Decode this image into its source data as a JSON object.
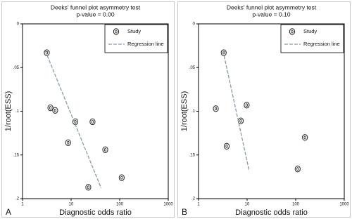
{
  "chart_data": [
    {
      "type": "scatter",
      "title": "Deeks' funnel plot asymmetry test",
      "subtitle": "p-value = 0.00",
      "x_label": "Diagnostic odds ratio",
      "y_label": "1/root(ESS)",
      "panel_label": "A",
      "log_x": true,
      "y_inverted": true,
      "xlim": [
        1,
        1000
      ],
      "xticks": [
        1,
        10,
        100,
        1000
      ],
      "ylim": [
        0,
        0.2
      ],
      "yticks": [
        0,
        {
          "value": 0.05,
          "label": ".05"
        },
        {
          "value": 0.1,
          "label": ".1"
        },
        {
          "value": 0.15,
          "label": ".15"
        },
        {
          "value": 0.2,
          "label": ".2"
        }
      ],
      "legend": "upper right",
      "series": [
        {
          "name": "Study",
          "color": "#222222",
          "x": [
            3.16,
            3.75,
            4.7,
            12.2,
            27.6,
            8.7,
            50.5,
            110,
            22.6
          ],
          "values": [
            0.033,
            0.096,
            0.099,
            0.112,
            0.112,
            0.136,
            0.144,
            0.176,
            0.187
          ]
        },
        {
          "name": "Regression line",
          "type": "line",
          "color": "#8a9aa8",
          "x": [
            2.95,
            41.6
          ],
          "values": [
            0.031,
            0.188
          ]
        }
      ]
    },
    {
      "type": "scatter",
      "title": "Deeks' funnel plot asymmetry test",
      "subtitle": "p-value = 0.10",
      "x_label": "Diagnostic odds ratio",
      "y_label": "1/root(ESS)",
      "panel_label": "B",
      "log_x": true,
      "y_inverted": true,
      "xlim": [
        1,
        1000
      ],
      "xticks": [
        1,
        10,
        100,
        1000
      ],
      "ylim": [
        0,
        0.2
      ],
      "yticks": [
        0,
        {
          "value": 0.05,
          "label": ".05"
        },
        {
          "value": 0.1,
          "label": ".1"
        },
        {
          "value": 0.15,
          "label": ".15"
        },
        {
          "value": 0.2,
          "label": ".2"
        }
      ],
      "legend": "upper right",
      "series": [
        {
          "name": "Study",
          "color": "#222222",
          "x": [
            3.3,
            2.27,
            3.8,
            9.8,
            7.4,
            155,
            110
          ],
          "values": [
            0.033,
            0.097,
            0.14,
            0.093,
            0.111,
            0.13,
            0.166
          ]
        },
        {
          "name": "Regression line",
          "type": "line",
          "color": "#8a9aa8",
          "x": [
            3.2,
            10.9
          ],
          "values": [
            0.031,
            0.167
          ]
        }
      ]
    }
  ]
}
